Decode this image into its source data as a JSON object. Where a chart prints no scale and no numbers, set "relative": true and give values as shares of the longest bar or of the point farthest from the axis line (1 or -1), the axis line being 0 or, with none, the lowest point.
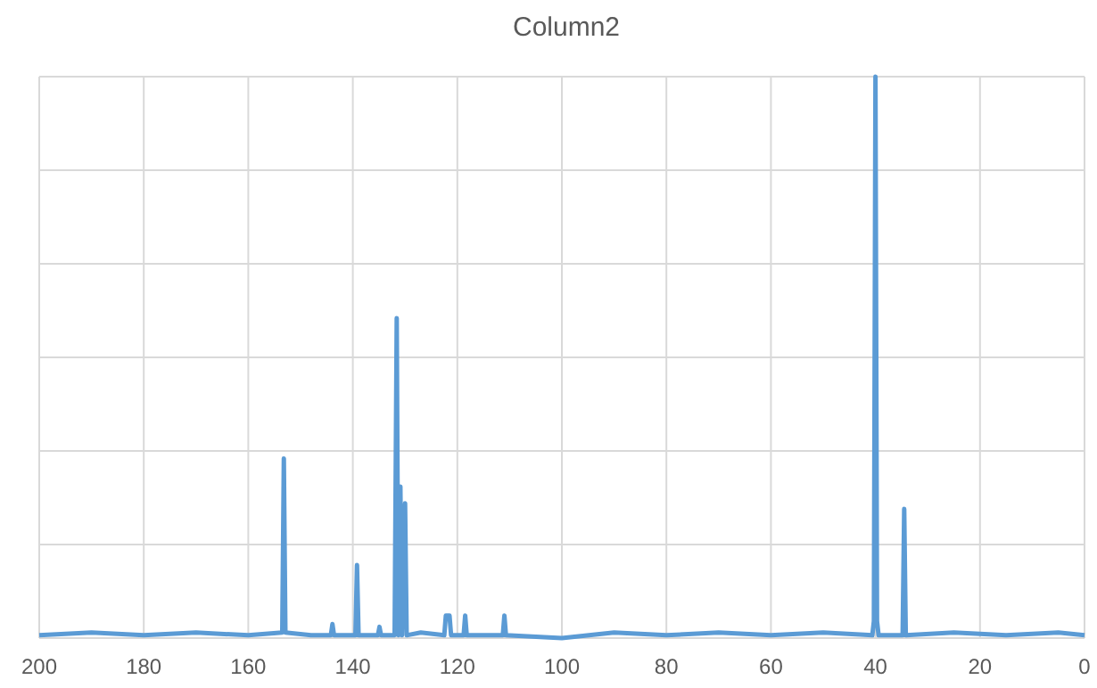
{
  "chart_data": {
    "type": "line",
    "title": "Column2",
    "relative": true,
    "xlim": [
      200,
      0
    ],
    "xticks": [
      200,
      180,
      160,
      140,
      120,
      100,
      80,
      60,
      40,
      20,
      0
    ],
    "grid": true,
    "tick_labels": "x",
    "marker": "none",
    "line_style": "solid",
    "series": [
      {
        "color": "#5b9bd5",
        "x": [
          200,
          190,
          180,
          170,
          160,
          153.5,
          153.2,
          152.9,
          148,
          144.2,
          143.9,
          143.6,
          139.5,
          139.2,
          138.9,
          135.2,
          134.9,
          134.6,
          132,
          131.6,
          131.3,
          130.9,
          130.6,
          130,
          129.7,
          127,
          122.5,
          122.2,
          121.5,
          121.2,
          118.8,
          118.5,
          118.2,
          115,
          111.3,
          111,
          110.7,
          100,
          90,
          80,
          70,
          60,
          50,
          40.6,
          40.3,
          40,
          39.7,
          39.4,
          34.8,
          34.5,
          34.2,
          25,
          15,
          5,
          0
        ],
        "values": [
          0.005,
          0.01,
          0.005,
          0.01,
          0.005,
          0.01,
          0.32,
          0.01,
          0.005,
          0.005,
          0.025,
          0.005,
          0.005,
          0.13,
          0.005,
          0.005,
          0.02,
          0.005,
          0.005,
          0.57,
          0.005,
          0.27,
          0.005,
          0.24,
          0.005,
          0.01,
          0.005,
          0.04,
          0.04,
          0.005,
          0.005,
          0.04,
          0.005,
          0.005,
          0.005,
          0.04,
          0.005,
          0,
          0.01,
          0.005,
          0.01,
          0.005,
          0.01,
          0.005,
          0.03,
          1,
          0.03,
          0.005,
          0.005,
          0.23,
          0.005,
          0.01,
          0.005,
          0.01,
          0.005
        ]
      }
    ]
  }
}
